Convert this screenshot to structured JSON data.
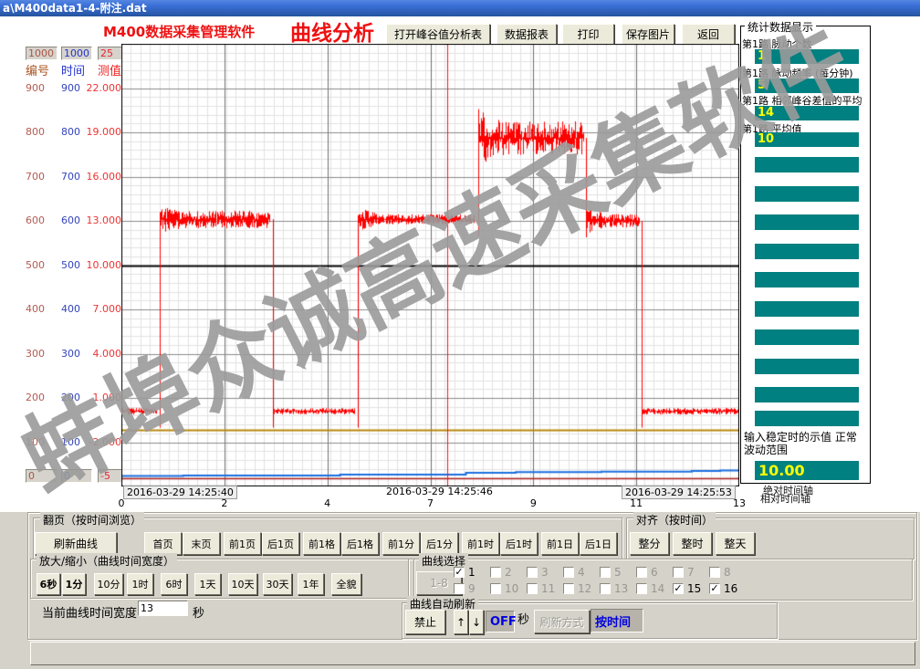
{
  "window": {
    "title": "a\\M400data1-4-附注.dat"
  },
  "header": {
    "app_title": "M400数据采集管理软件",
    "page_title": "曲线分析",
    "buttons": [
      "打开峰谷值分析表",
      "数据报表",
      "打印",
      "保存图片",
      "返回"
    ]
  },
  "left_axis": {
    "top_inputs": [
      "1000",
      "1000",
      "25"
    ],
    "columns": [
      "编号",
      "时间",
      "测值"
    ],
    "rows": [
      [
        "900",
        "900",
        "22.000"
      ],
      [
        "800",
        "800",
        "19.000"
      ],
      [
        "700",
        "700",
        "16.000"
      ],
      [
        "600",
        "600",
        "13.000"
      ],
      [
        "500",
        "500",
        "10.000"
      ],
      [
        "400",
        "400",
        "7.000"
      ],
      [
        "300",
        "300",
        "4.000"
      ],
      [
        "200",
        "200",
        "1.000"
      ],
      [
        "100",
        "100",
        "-2.000"
      ]
    ],
    "bottom_inputs": [
      "0",
      "0",
      "-5"
    ]
  },
  "stats_panel": {
    "title": "统计数据显示",
    "items": [
      {
        "label": "第1路 脉动个数",
        "value": "1"
      },
      {
        "label": "第1路 脉动频率 (每分钟)",
        "value": "5"
      },
      {
        "label": "第1路 相邻峰谷差值的平均",
        "value": "14"
      },
      {
        "label": "第1路 平均值",
        "value": "10"
      }
    ],
    "empty_slot_count": 10,
    "footer_label": "输入稳定时的示值 正常波动范围",
    "footer_value": "10.00"
  },
  "axis_mode_labels": [
    "绝对时间轴",
    "相对时间轴"
  ],
  "watermark": "蚌埠众诚高速采集软件",
  "chart_data": {
    "type": "line",
    "x_axis": {
      "tick_labels": [
        "0",
        "2",
        "4",
        "7",
        "9",
        "11",
        "13"
      ],
      "range_seconds": [
        0,
        13
      ],
      "timestamps": [
        "2016-03-29 14:25:40",
        "2016-03-29 14:25:46",
        "2016-03-29 14:25:53"
      ]
    },
    "y_axes": {
      "编号": [
        0,
        1000
      ],
      "时间": [
        0,
        1000
      ],
      "测值": [
        -5,
        25
      ]
    },
    "grid": true,
    "cursor_seconds": 6.85,
    "reference_lines": [
      {
        "name": "stable-value-line",
        "value": 10.0,
        "color": "#000000",
        "width": 2
      },
      {
        "name": "orange-level-line",
        "value": -1.15,
        "color": "#b8860b",
        "width": 2
      },
      {
        "name": "crimson-level-line",
        "value": -4.42,
        "color": "#b22222",
        "width": 1.5
      }
    ],
    "series": [
      {
        "name": "channel-1",
        "color": "#ff0000",
        "segments": [
          {
            "from": 0,
            "to": 0.73,
            "value": 0.1,
            "noise": 0.25
          },
          {
            "from": 0.8,
            "to": 3.12,
            "value": 13.1,
            "noise": 0.6,
            "noise_start": 0.9
          },
          {
            "from": 3.18,
            "to": 4.9,
            "value": 0.1,
            "noise": 0.22
          },
          {
            "from": 4.97,
            "to": 7.42,
            "value": 13.1,
            "noise": 0.35,
            "noise_start": 0.85
          },
          {
            "from": 7.5,
            "to": 9.72,
            "value": 18.6,
            "noise": 1.15,
            "noise_start": 2.0
          },
          {
            "from": 9.78,
            "to": 10.88,
            "value": 13.0,
            "noise": 0.45,
            "noise_start": 0.9
          },
          {
            "from": 10.94,
            "to": 13,
            "value": 0.1,
            "noise": 0.22
          }
        ]
      },
      {
        "name": "channel-blue",
        "color": "#1b6fe0",
        "points": [
          [
            0,
            -4.29
          ],
          [
            1.3,
            -4.25
          ],
          [
            4.6,
            -4.2
          ],
          [
            7.25,
            -4.07
          ],
          [
            8.3,
            -4.03
          ],
          [
            10.1,
            -4.0
          ],
          [
            12.0,
            -3.95
          ],
          [
            12.6,
            -3.92
          ],
          [
            13,
            -3.92
          ]
        ]
      }
    ]
  },
  "paging": {
    "label": "翻页（按时间浏览）",
    "refresh_button": "刷新曲线",
    "buttons": [
      "首页",
      "末页",
      "前1页",
      "后1页",
      "前1格",
      "后1格",
      "前1分",
      "后1分",
      "前1时",
      "后1时",
      "前1日",
      "后1日"
    ]
  },
  "align": {
    "label": "对齐（按时间）",
    "buttons": [
      "整分",
      "整时",
      "整天"
    ]
  },
  "zoom": {
    "label": "放大/缩小（曲线时间宽度）",
    "buttons": [
      {
        "label": "6秒",
        "active": true
      },
      {
        "label": "1分",
        "active": true
      },
      {
        "label": "10分",
        "active": false
      },
      {
        "label": "1时",
        "active": false
      },
      {
        "label": "6时",
        "active": false
      },
      {
        "label": "1天",
        "active": false
      },
      {
        "label": "10天",
        "active": false
      },
      {
        "label": "30天",
        "active": false
      },
      {
        "label": "1年",
        "active": false
      },
      {
        "label": "全貌",
        "active": false
      }
    ]
  },
  "width_row": {
    "label": "当前曲线时间宽度",
    "value": "13",
    "unit": "秒"
  },
  "curve_select": {
    "label": "曲线选择",
    "range_button": "1-8",
    "items": [
      {
        "label": "1",
        "checked": true
      },
      {
        "label": "2",
        "checked": false
      },
      {
        "label": "3",
        "checked": false
      },
      {
        "label": "4",
        "checked": false
      },
      {
        "label": "5",
        "checked": false
      },
      {
        "label": "6",
        "checked": false
      },
      {
        "label": "7",
        "checked": false
      },
      {
        "label": "8",
        "checked": false
      },
      {
        "label": "9",
        "checked": false
      },
      {
        "label": "10",
        "checked": false
      },
      {
        "label": "11",
        "checked": false
      },
      {
        "label": "12",
        "checked": false
      },
      {
        "label": "13",
        "checked": false
      },
      {
        "label": "14",
        "checked": false
      },
      {
        "label": "15",
        "checked": true
      },
      {
        "label": "16",
        "checked": true
      }
    ]
  },
  "auto_refresh": {
    "label": "曲线自动刷新",
    "stop_button": "禁止",
    "up": "↑",
    "down": "↓",
    "interval_value": "OFF",
    "interval_unit": "秒",
    "mode_button": "刷新方式",
    "mode_value": "按时间"
  }
}
